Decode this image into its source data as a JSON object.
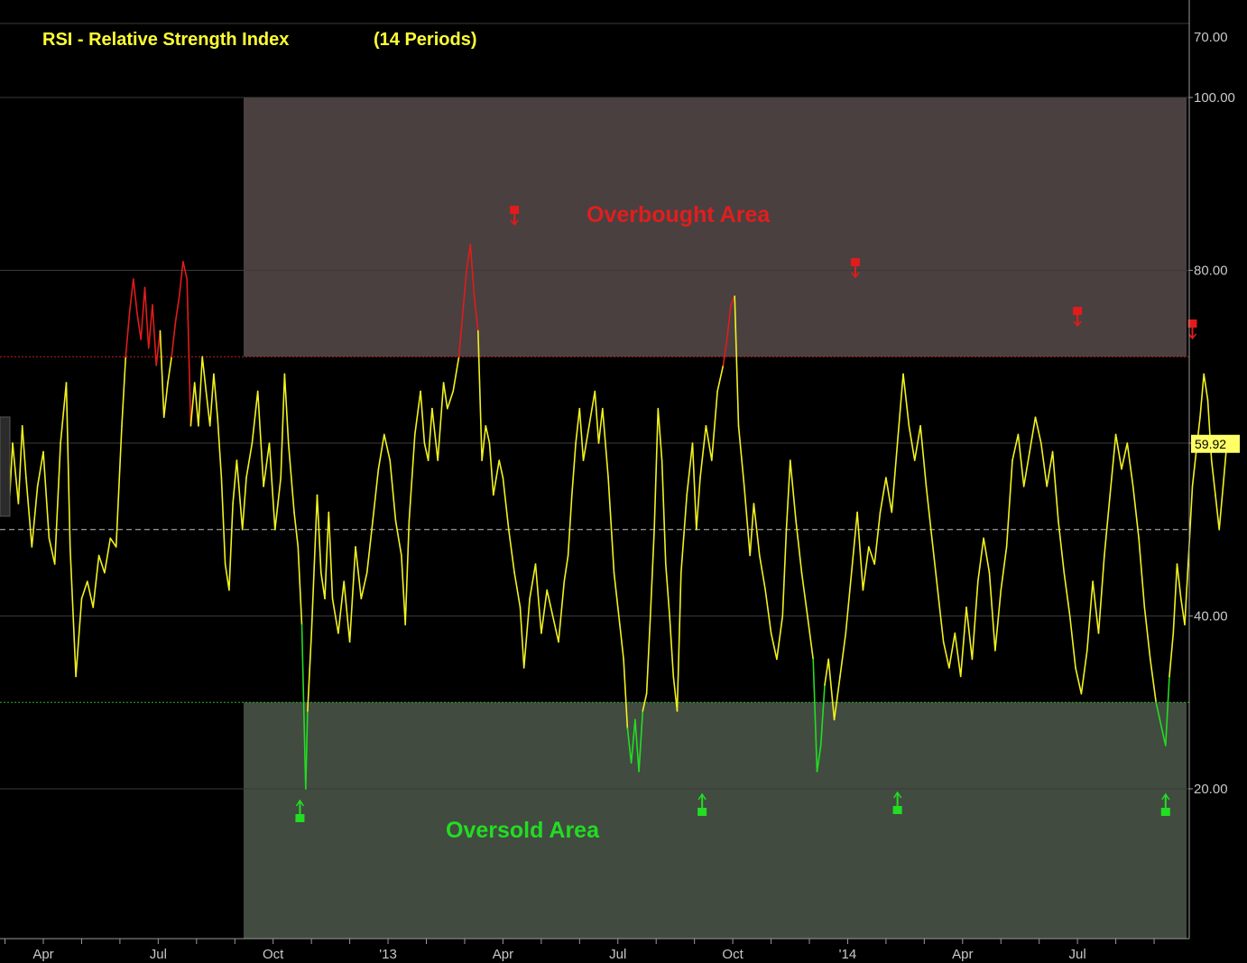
{
  "chart_data": {
    "type": "line",
    "title": "RSI - Relative Strength Index",
    "subtitle": "(14 Periods)",
    "xlabel": "",
    "ylabel": "",
    "ylim": [
      0,
      100
    ],
    "y_ticks": [
      20,
      40,
      60,
      80,
      100
    ],
    "y_tick_labels": [
      "20.00",
      "40.00",
      "60.00",
      "80.00",
      "100.00"
    ],
    "top_partial_tick_label": "70.00",
    "x_ticks": [
      {
        "pos": 3,
        "label": "Apr"
      },
      {
        "pos": 6,
        "label": "Jul"
      },
      {
        "pos": 9,
        "label": "Oct"
      },
      {
        "pos": 12,
        "label": "'13"
      },
      {
        "pos": 15,
        "label": "Apr"
      },
      {
        "pos": 18,
        "label": "Jul"
      },
      {
        "pos": 21,
        "label": "Oct"
      },
      {
        "pos": 24,
        "label": "'14"
      },
      {
        "pos": 27,
        "label": "Apr"
      },
      {
        "pos": 30,
        "label": "Jul"
      }
    ],
    "overbought_level": 70,
    "oversold_level": 30,
    "midline": 50,
    "last_value": "59.92",
    "annotations": {
      "overbought_label": "Overbought Area",
      "oversold_label": "Oversold Area",
      "sell_signals_x": [
        15.3,
        24.2,
        30.0,
        33.0
      ],
      "buy_signals_x": [
        9.7,
        20.2,
        25.3,
        32.3
      ]
    },
    "series": [
      {
        "values": [
          [
            1.0,
            31
          ],
          [
            1.1,
            38
          ],
          [
            1.3,
            45
          ],
          [
            1.45,
            51
          ],
          [
            1.55,
            44
          ],
          [
            1.7,
            56
          ],
          [
            1.8,
            50
          ],
          [
            1.95,
            58
          ],
          [
            2.1,
            52
          ],
          [
            2.2,
            60
          ],
          [
            2.35,
            53
          ],
          [
            2.45,
            62
          ],
          [
            2.55,
            56
          ],
          [
            2.7,
            48
          ],
          [
            2.85,
            55
          ],
          [
            3.0,
            59
          ],
          [
            3.15,
            49
          ],
          [
            3.3,
            46
          ],
          [
            3.45,
            60
          ],
          [
            3.6,
            67
          ],
          [
            3.7,
            48
          ],
          [
            3.85,
            33
          ],
          [
            4.0,
            42
          ],
          [
            4.15,
            44
          ],
          [
            4.3,
            41
          ],
          [
            4.45,
            47
          ],
          [
            4.6,
            45
          ],
          [
            4.75,
            49
          ],
          [
            4.9,
            48
          ],
          [
            5.05,
            62
          ],
          [
            5.15,
            70
          ],
          [
            5.25,
            75
          ],
          [
            5.35,
            79
          ],
          [
            5.45,
            75
          ],
          [
            5.55,
            72
          ],
          [
            5.65,
            78
          ],
          [
            5.75,
            71
          ],
          [
            5.85,
            76
          ],
          [
            5.95,
            69
          ],
          [
            6.05,
            73
          ],
          [
            6.15,
            63
          ],
          [
            6.25,
            67
          ],
          [
            6.35,
            70
          ],
          [
            6.45,
            74
          ],
          [
            6.55,
            77
          ],
          [
            6.65,
            81
          ],
          [
            6.75,
            79
          ],
          [
            6.85,
            62
          ],
          [
            6.95,
            67
          ],
          [
            7.05,
            62
          ],
          [
            7.15,
            70
          ],
          [
            7.25,
            66
          ],
          [
            7.35,
            62
          ],
          [
            7.45,
            68
          ],
          [
            7.55,
            63
          ],
          [
            7.65,
            56
          ],
          [
            7.75,
            46
          ],
          [
            7.85,
            43
          ],
          [
            7.95,
            53
          ],
          [
            8.05,
            58
          ],
          [
            8.2,
            50
          ],
          [
            8.3,
            56
          ],
          [
            8.45,
            60
          ],
          [
            8.6,
            66
          ],
          [
            8.75,
            55
          ],
          [
            8.9,
            60
          ],
          [
            9.05,
            50
          ],
          [
            9.2,
            56
          ],
          [
            9.3,
            68
          ],
          [
            9.4,
            60
          ],
          [
            9.55,
            52
          ],
          [
            9.65,
            48
          ],
          [
            9.75,
            39
          ],
          [
            9.85,
            20
          ],
          [
            9.9,
            29
          ],
          [
            10.0,
            38
          ],
          [
            10.15,
            54
          ],
          [
            10.25,
            45
          ],
          [
            10.35,
            42
          ],
          [
            10.45,
            52
          ],
          [
            10.55,
            42
          ],
          [
            10.7,
            38
          ],
          [
            10.85,
            44
          ],
          [
            11.0,
            37
          ],
          [
            11.15,
            48
          ],
          [
            11.3,
            42
          ],
          [
            11.45,
            45
          ],
          [
            11.6,
            51
          ],
          [
            11.75,
            57
          ],
          [
            11.9,
            61
          ],
          [
            12.05,
            58
          ],
          [
            12.2,
            51
          ],
          [
            12.35,
            47
          ],
          [
            12.45,
            39
          ],
          [
            12.55,
            51
          ],
          [
            12.7,
            61
          ],
          [
            12.85,
            66
          ],
          [
            12.95,
            60
          ],
          [
            13.05,
            58
          ],
          [
            13.15,
            64
          ],
          [
            13.3,
            58
          ],
          [
            13.45,
            67
          ],
          [
            13.55,
            64
          ],
          [
            13.7,
            66
          ],
          [
            13.85,
            70
          ],
          [
            13.95,
            75
          ],
          [
            14.05,
            80
          ],
          [
            14.15,
            83
          ],
          [
            14.25,
            77
          ],
          [
            14.35,
            73
          ],
          [
            14.45,
            58
          ],
          [
            14.55,
            62
          ],
          [
            14.65,
            60
          ],
          [
            14.75,
            54
          ],
          [
            14.9,
            58
          ],
          [
            15.0,
            56
          ],
          [
            15.15,
            50
          ],
          [
            15.3,
            45
          ],
          [
            15.45,
            41
          ],
          [
            15.55,
            34
          ],
          [
            15.7,
            42
          ],
          [
            15.85,
            46
          ],
          [
            16.0,
            38
          ],
          [
            16.15,
            43
          ],
          [
            16.3,
            40
          ],
          [
            16.45,
            37
          ],
          [
            16.6,
            44
          ],
          [
            16.7,
            47
          ],
          [
            16.8,
            54
          ],
          [
            16.9,
            60
          ],
          [
            17.0,
            64
          ],
          [
            17.1,
            58
          ],
          [
            17.25,
            62
          ],
          [
            17.4,
            66
          ],
          [
            17.5,
            60
          ],
          [
            17.6,
            64
          ],
          [
            17.75,
            56
          ],
          [
            17.9,
            45
          ],
          [
            18.05,
            39
          ],
          [
            18.15,
            35
          ],
          [
            18.25,
            27
          ],
          [
            18.35,
            23
          ],
          [
            18.45,
            28
          ],
          [
            18.55,
            22
          ],
          [
            18.65,
            29
          ],
          [
            18.75,
            31
          ],
          [
            18.85,
            40
          ],
          [
            18.95,
            50
          ],
          [
            19.05,
            64
          ],
          [
            19.15,
            58
          ],
          [
            19.25,
            46
          ],
          [
            19.35,
            40
          ],
          [
            19.45,
            33
          ],
          [
            19.55,
            29
          ],
          [
            19.65,
            45
          ],
          [
            19.8,
            54
          ],
          [
            19.95,
            60
          ],
          [
            20.05,
            50
          ],
          [
            20.15,
            56
          ],
          [
            20.3,
            62
          ],
          [
            20.45,
            58
          ],
          [
            20.6,
            66
          ],
          [
            20.75,
            69
          ],
          [
            20.85,
            72
          ],
          [
            20.95,
            76
          ],
          [
            21.05,
            77
          ],
          [
            21.15,
            62
          ],
          [
            21.3,
            55
          ],
          [
            21.45,
            47
          ],
          [
            21.55,
            53
          ],
          [
            21.7,
            47
          ],
          [
            21.85,
            43
          ],
          [
            22.0,
            38
          ],
          [
            22.15,
            35
          ],
          [
            22.3,
            40
          ],
          [
            22.4,
            50
          ],
          [
            22.5,
            58
          ],
          [
            22.65,
            51
          ],
          [
            22.8,
            45
          ],
          [
            22.95,
            40
          ],
          [
            23.1,
            35
          ],
          [
            23.2,
            22
          ],
          [
            23.3,
            25
          ],
          [
            23.4,
            32
          ],
          [
            23.5,
            35
          ],
          [
            23.65,
            28
          ],
          [
            23.8,
            33
          ],
          [
            23.95,
            38
          ],
          [
            24.1,
            45
          ],
          [
            24.25,
            52
          ],
          [
            24.4,
            43
          ],
          [
            24.55,
            48
          ],
          [
            24.7,
            46
          ],
          [
            24.85,
            52
          ],
          [
            25.0,
            56
          ],
          [
            25.15,
            52
          ],
          [
            25.3,
            60
          ],
          [
            25.45,
            68
          ],
          [
            25.6,
            62
          ],
          [
            25.75,
            58
          ],
          [
            25.9,
            62
          ],
          [
            26.05,
            55
          ],
          [
            26.2,
            49
          ],
          [
            26.35,
            43
          ],
          [
            26.5,
            37
          ],
          [
            26.65,
            34
          ],
          [
            26.8,
            38
          ],
          [
            26.95,
            33
          ],
          [
            27.1,
            41
          ],
          [
            27.25,
            35
          ],
          [
            27.4,
            44
          ],
          [
            27.55,
            49
          ],
          [
            27.7,
            45
          ],
          [
            27.85,
            36
          ],
          [
            28.0,
            43
          ],
          [
            28.15,
            48
          ],
          [
            28.3,
            58
          ],
          [
            28.45,
            61
          ],
          [
            28.6,
            55
          ],
          [
            28.75,
            59
          ],
          [
            28.9,
            63
          ],
          [
            29.05,
            60
          ],
          [
            29.2,
            55
          ],
          [
            29.35,
            59
          ],
          [
            29.5,
            51
          ],
          [
            29.65,
            45
          ],
          [
            29.8,
            40
          ],
          [
            29.95,
            34
          ],
          [
            30.1,
            31
          ],
          [
            30.25,
            36
          ],
          [
            30.4,
            44
          ],
          [
            30.55,
            38
          ],
          [
            30.7,
            47
          ],
          [
            30.85,
            54
          ],
          [
            31.0,
            61
          ],
          [
            31.15,
            57
          ],
          [
            31.3,
            60
          ],
          [
            31.45,
            55
          ],
          [
            31.6,
            49
          ],
          [
            31.75,
            41
          ],
          [
            31.9,
            35
          ],
          [
            32.05,
            30
          ],
          [
            32.2,
            27
          ],
          [
            32.3,
            25
          ],
          [
            32.4,
            33
          ],
          [
            32.5,
            38
          ],
          [
            32.6,
            46
          ],
          [
            32.7,
            42
          ],
          [
            32.8,
            39
          ],
          [
            32.9,
            47
          ],
          [
            33.0,
            55
          ],
          [
            33.1,
            59
          ],
          [
            33.2,
            63
          ],
          [
            33.3,
            68
          ],
          [
            33.4,
            65
          ],
          [
            33.5,
            58
          ],
          [
            33.6,
            54
          ],
          [
            33.7,
            50
          ],
          [
            33.8,
            55
          ],
          [
            33.9,
            60
          ]
        ]
      }
    ]
  }
}
